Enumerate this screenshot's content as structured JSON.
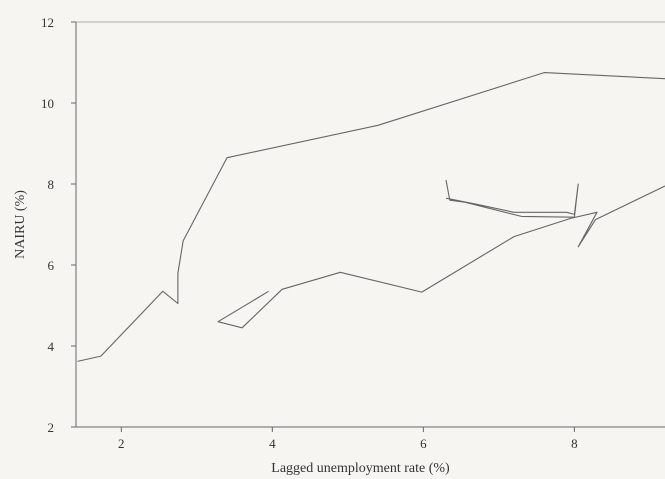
{
  "chart_data": {
    "type": "line",
    "title": "",
    "xlabel": "Lagged unemployment rate (%)",
    "ylabel": "NAIRU (%)",
    "xlim": [
      1.4,
      9.2
    ],
    "ylim": [
      2,
      12
    ],
    "xticks": [
      2,
      4,
      6,
      8
    ],
    "yticks": [
      2,
      4,
      6,
      8,
      10,
      12
    ],
    "grid": false,
    "line_color": "#666666",
    "series": [
      {
        "points": [
          [
            1.42,
            3.62
          ],
          [
            1.73,
            3.75
          ],
          [
            2.55,
            5.35
          ],
          [
            2.75,
            5.05
          ],
          [
            2.75,
            5.8
          ],
          [
            2.82,
            6.6
          ],
          [
            3.4,
            8.65
          ],
          [
            5.4,
            9.45
          ],
          [
            7.6,
            10.75
          ],
          [
            9.2,
            10.6
          ]
        ]
      },
      {
        "points": [
          [
            3.95,
            5.35
          ],
          [
            3.28,
            4.6
          ],
          [
            3.6,
            4.45
          ],
          [
            4.13,
            5.4
          ],
          [
            4.9,
            5.82
          ],
          [
            5.98,
            5.33
          ],
          [
            7.2,
            6.7
          ],
          [
            7.95,
            7.15
          ],
          [
            8.3,
            7.3
          ],
          [
            8.05,
            6.45
          ],
          [
            8.28,
            7.12
          ],
          [
            9.2,
            7.95
          ]
        ]
      },
      {
        "points": [
          [
            6.3,
            8.1
          ],
          [
            6.35,
            7.6
          ],
          [
            6.55,
            7.55
          ],
          [
            7.3,
            7.2
          ],
          [
            8.0,
            7.18
          ],
          [
            8.05,
            8.0
          ],
          [
            8.0,
            7.25
          ],
          [
            7.9,
            7.3
          ],
          [
            7.2,
            7.3
          ],
          [
            6.7,
            7.5
          ],
          [
            6.3,
            7.65
          ]
        ]
      }
    ]
  }
}
